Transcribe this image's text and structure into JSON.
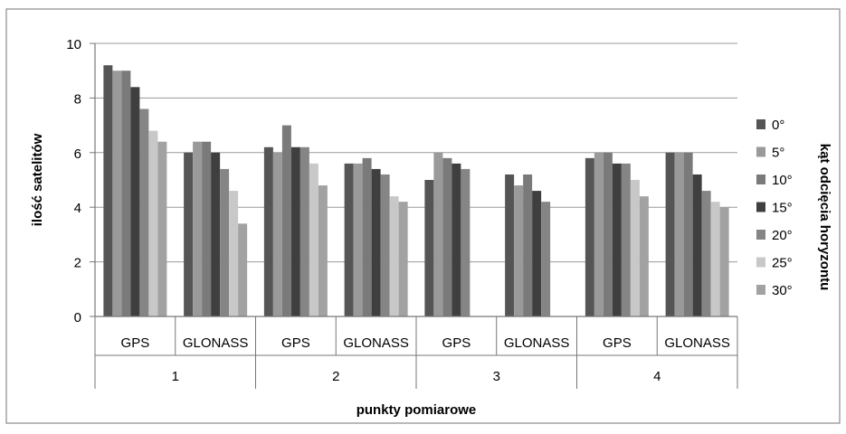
{
  "chart_data": {
    "type": "bar",
    "xlabel": "punkty pomiarowe",
    "ylabel": "ilość satelitów",
    "legend_title": "kąt odcięcia horyzontu",
    "legend_position": "right",
    "ylim": [
      0,
      10
    ],
    "yticks": [
      "0",
      "2",
      "4",
      "6",
      "8",
      "10"
    ],
    "grid": true,
    "groups": [
      {
        "label": "1",
        "categories": [
          "GPS",
          "GLONASS"
        ]
      },
      {
        "label": "2",
        "categories": [
          "GPS",
          "GLONASS"
        ]
      },
      {
        "label": "3",
        "categories": [
          "GPS",
          "GLONASS"
        ]
      },
      {
        "label": "4",
        "categories": [
          "GPS",
          "GLONASS"
        ]
      }
    ],
    "categories": [
      "GPS",
      "GLONASS",
      "GPS",
      "GLONASS",
      "GPS",
      "GLONASS",
      "GPS",
      "GLONASS"
    ],
    "series": [
      {
        "name": "0°",
        "color": "#555555",
        "values": [
          9.2,
          6.0,
          6.2,
          5.6,
          5.0,
          5.2,
          5.8,
          6.0
        ]
      },
      {
        "name": "5°",
        "color": "#9a9a9a",
        "values": [
          9.0,
          6.4,
          6.0,
          5.6,
          6.0,
          4.8,
          6.0,
          6.0
        ]
      },
      {
        "name": "10°",
        "color": "#7a7a7a",
        "values": [
          9.0,
          6.4,
          7.0,
          5.8,
          5.8,
          5.2,
          6.0,
          6.0
        ]
      },
      {
        "name": "15°",
        "color": "#3f3f3f",
        "values": [
          8.4,
          6.0,
          6.2,
          5.4,
          5.6,
          4.6,
          5.6,
          5.2
        ]
      },
      {
        "name": "20°",
        "color": "#858585",
        "values": [
          7.6,
          5.4,
          6.2,
          5.2,
          5.4,
          4.2,
          5.6,
          4.6
        ]
      },
      {
        "name": "25°",
        "color": "#c8c8c8",
        "values": [
          6.8,
          4.6,
          5.6,
          4.4,
          null,
          null,
          5.0,
          4.2
        ]
      },
      {
        "name": "30°",
        "color": "#a2a2a2",
        "values": [
          6.4,
          3.4,
          4.8,
          4.2,
          null,
          null,
          4.4,
          4.0
        ]
      }
    ]
  }
}
